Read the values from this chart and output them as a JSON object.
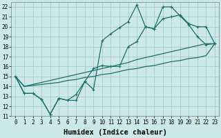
{
  "xlabel": "Humidex (Indice chaleur)",
  "background_color": "#cce8e8",
  "grid_color": "#aacfcf",
  "line_color": "#1a6e6e",
  "xlim": [
    -0.5,
    23.5
  ],
  "ylim": [
    11,
    22.5
  ],
  "xticks": [
    0,
    1,
    2,
    3,
    4,
    5,
    6,
    7,
    8,
    9,
    10,
    11,
    12,
    13,
    14,
    15,
    16,
    17,
    18,
    19,
    20,
    21,
    22,
    23
  ],
  "yticks": [
    11,
    12,
    13,
    14,
    15,
    16,
    17,
    18,
    19,
    20,
    21,
    22
  ],
  "series": [
    [
      15.0,
      13.3,
      13.3,
      12.7,
      11.2,
      12.8,
      12.6,
      12.6,
      14.5,
      13.7,
      18.6,
      19.3,
      19.9,
      20.5,
      22.2,
      20.0,
      19.8,
      22.0,
      22.0,
      21.1,
      20.2,
      19.0,
      18.2,
      18.3
    ],
    [
      15.0,
      13.3,
      13.3,
      12.7,
      11.2,
      12.8,
      12.6,
      13.2,
      14.5,
      15.8,
      16.1,
      16.0,
      16.0,
      18.0,
      18.5,
      20.0,
      19.8,
      20.8,
      21.0,
      21.2,
      20.3,
      20.0,
      20.0,
      18.3
    ],
    [
      15.0,
      14.0,
      14.1,
      14.2,
      14.3,
      14.4,
      14.6,
      14.7,
      14.9,
      15.0,
      15.2,
      15.3,
      15.5,
      15.7,
      15.8,
      16.0,
      16.1,
      16.3,
      16.5,
      16.6,
      16.8,
      16.9,
      17.1,
      18.3
    ],
    [
      15.0,
      14.0,
      14.2,
      14.4,
      14.6,
      14.8,
      15.0,
      15.2,
      15.4,
      15.6,
      15.8,
      16.0,
      16.2,
      16.4,
      16.7,
      16.9,
      17.1,
      17.3,
      17.5,
      17.7,
      17.9,
      18.1,
      18.3,
      18.3
    ]
  ],
  "markers": [
    true,
    true,
    false,
    false
  ],
  "font_family": "monospace",
  "tick_fontsize": 5.5,
  "xlabel_fontsize": 7.5
}
